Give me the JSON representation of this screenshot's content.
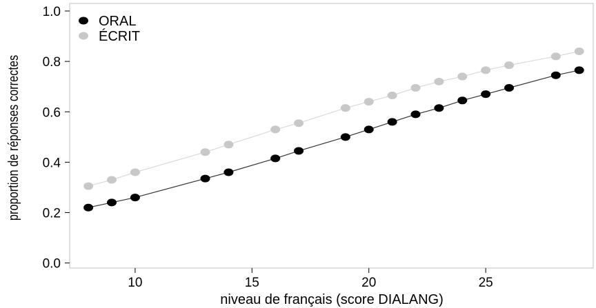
{
  "chart_data": {
    "type": "line",
    "xlabel": "niveau de français (score DIALANG)",
    "ylabel": "proportion de réponses correctes",
    "xlim": [
      7.2,
      29.6
    ],
    "ylim": [
      -0.02,
      1.03
    ],
    "xticks": [
      10,
      15,
      20,
      25
    ],
    "yticks": [
      0.0,
      0.2,
      0.4,
      0.6,
      0.8,
      1.0
    ],
    "ytick_labels": [
      "0.0",
      "0.2",
      "0.4",
      "0.6",
      "0.8",
      "1.0"
    ],
    "xtick_labels": [
      "10",
      "15",
      "20",
      "25"
    ],
    "grid": false,
    "legend_position": "top-left",
    "series": [
      {
        "name": "ORAL",
        "color": "#000000",
        "x": [
          8,
          9,
          10,
          13,
          14,
          16,
          17,
          19,
          20,
          21,
          22,
          23,
          24,
          25,
          26,
          28,
          29
        ],
        "y": [
          0.22,
          0.24,
          0.26,
          0.335,
          0.36,
          0.415,
          0.445,
          0.5,
          0.53,
          0.56,
          0.59,
          0.615,
          0.645,
          0.67,
          0.695,
          0.745,
          0.765
        ]
      },
      {
        "name": "ÉCRIT",
        "color": "#c8c8c8",
        "x": [
          8,
          9,
          10,
          13,
          14,
          16,
          17,
          19,
          20,
          21,
          22,
          23,
          24,
          25,
          26,
          28,
          29
        ],
        "y": [
          0.305,
          0.33,
          0.36,
          0.44,
          0.47,
          0.53,
          0.555,
          0.615,
          0.64,
          0.665,
          0.695,
          0.72,
          0.74,
          0.765,
          0.785,
          0.82,
          0.84
        ]
      }
    ]
  }
}
